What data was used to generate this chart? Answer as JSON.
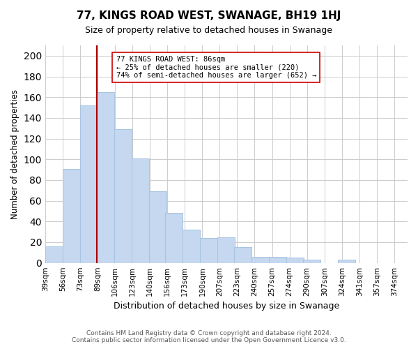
{
  "title": "77, KINGS ROAD WEST, SWANAGE, BH19 1HJ",
  "subtitle": "Size of property relative to detached houses in Swanage",
  "xlabel": "Distribution of detached houses by size in Swanage",
  "ylabel": "Number of detached properties",
  "bar_values": [
    16,
    91,
    152,
    165,
    129,
    101,
    69,
    48,
    32,
    24,
    25,
    15,
    6,
    6,
    5,
    3,
    0,
    3
  ],
  "bar_edges": [
    39,
    56,
    73,
    89,
    106,
    123,
    140,
    156,
    173,
    190,
    207,
    223,
    240,
    257,
    274,
    290,
    307,
    324,
    341
  ],
  "bin_labels": [
    "39sqm",
    "56sqm",
    "73sqm",
    "89sqm",
    "106sqm",
    "123sqm",
    "140sqm",
    "156sqm",
    "173sqm",
    "190sqm",
    "207sqm",
    "223sqm",
    "240sqm",
    "257sqm",
    "274sqm",
    "290sqm",
    "307sqm",
    "324sqm",
    "341sqm",
    "357sqm",
    "374sqm"
  ],
  "bar_color": "#c5d8f0",
  "bar_edgecolor": "#a8c4e0",
  "vline_x": 89,
  "vline_color": "#aa0000",
  "annotation_lines": [
    "77 KINGS ROAD WEST: 86sqm",
    "← 25% of detached houses are smaller (220)",
    "74% of semi-detached houses are larger (652) →"
  ],
  "ylim": [
    0,
    210
  ],
  "yticks": [
    0,
    20,
    40,
    60,
    80,
    100,
    120,
    140,
    160,
    180,
    200
  ],
  "bg_color": "#ffffff",
  "grid_color": "#cccccc",
  "footer_line1": "Contains HM Land Registry data © Crown copyright and database right 2024.",
  "footer_line2": "Contains public sector information licensed under the Open Government Licence v3.0."
}
